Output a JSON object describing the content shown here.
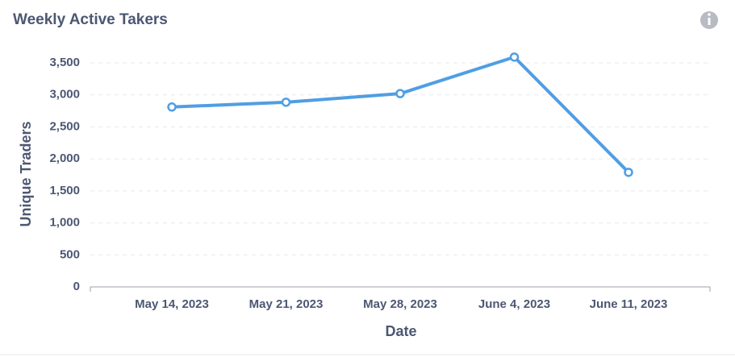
{
  "chart_data": {
    "type": "line",
    "title": "Weekly Active Takers",
    "x_label": "Date",
    "y_label": "Unique Traders",
    "categories": [
      "May 14, 2023",
      "May 21, 2023",
      "May 28, 2023",
      "June 4, 2023",
      "June 11, 2023"
    ],
    "values": [
      2810,
      2885,
      3020,
      3590,
      1790
    ],
    "color": "#509ee3",
    "ylim": [
      0,
      3500
    ],
    "yticks": [
      0,
      500,
      {
        "value": 1000,
        "label": "1,000"
      },
      {
        "value": 1500,
        "label": "1,500"
      },
      {
        "value": 2000,
        "label": "2,000"
      },
      {
        "value": 2500,
        "label": "2,500"
      },
      {
        "value": 3000,
        "label": "3,000"
      },
      {
        "value": 3500,
        "label": "3,500"
      }
    ],
    "grid": true
  }
}
